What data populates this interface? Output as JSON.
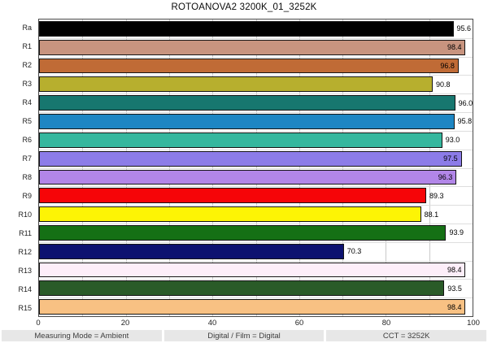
{
  "title": "ROTOANOVA2 3200K_01_3252K",
  "chart_data": {
    "type": "bar",
    "orientation": "horizontal",
    "title": "ROTOANOVA2 3200K_01_3252K",
    "categories": [
      "Ra",
      "R1",
      "R2",
      "R3",
      "R4",
      "R5",
      "R6",
      "R7",
      "R8",
      "R9",
      "R10",
      "R11",
      "R12",
      "R13",
      "R14",
      "R15"
    ],
    "values": [
      95.6,
      98.4,
      96.8,
      90.8,
      96.0,
      95.8,
      93.0,
      97.5,
      96.3,
      89.3,
      88.1,
      93.9,
      70.3,
      98.4,
      93.5,
      98.4
    ],
    "value_labels": [
      "95.6",
      "98.4",
      "96.8",
      "90.8",
      "96.0",
      "95.8",
      "93.0",
      "97.5",
      "96.3",
      "89.3",
      "88.1",
      "93.9",
      "70.3",
      "98.4",
      "93.5",
      "98.4"
    ],
    "value_label_inside": [
      false,
      true,
      true,
      false,
      false,
      false,
      false,
      true,
      true,
      false,
      false,
      false,
      false,
      true,
      false,
      true
    ],
    "bar_colors": [
      "#000000",
      "#c8947f",
      "#c06b36",
      "#b7af2e",
      "#17776f",
      "#1e86c3",
      "#35b79e",
      "#8c7ce8",
      "#b286e8",
      "#f60508",
      "#fdf405",
      "#157015",
      "#0d1270",
      "#fdeef9",
      "#2a5b28",
      "#f8c183"
    ],
    "xlabel": "",
    "ylabel": "",
    "xlim": [
      0,
      100
    ],
    "x_ticks": [
      0,
      20,
      40,
      60,
      80,
      100
    ],
    "grid": "vertical lines every 10 units, light horizontal row separators",
    "legend": "none"
  },
  "status_bar": {
    "items": [
      "Measuring Mode = Ambient",
      "Digital / Film = Digital",
      "CCT = 3252K"
    ]
  },
  "colors": {
    "background": "#ffffff",
    "plot_border": "#4a4a4a",
    "grid_line": "#c9c9c9",
    "row_separator": "#dedede",
    "bar_border": "#141414",
    "status_background": "#e7e7e7",
    "status_text": "#3d3d3d",
    "axis_text": "#222222",
    "value_text": "#000000"
  }
}
